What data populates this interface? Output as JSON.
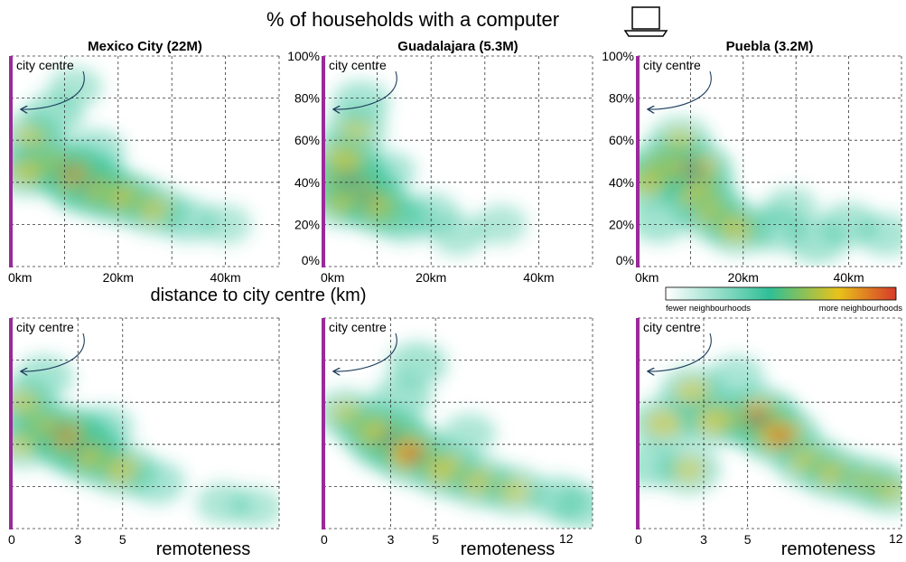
{
  "figure": {
    "title": "% of households with a computer",
    "title_icon": "laptop-icon",
    "x_label_top": "distance to city centre (km)",
    "x_label_bottom": "remoteness",
    "annotation": "city centre",
    "colorbar": {
      "low_label": "fewer neighbourhoods",
      "high_label": "more neighbourhoods",
      "colors": [
        "#ffffff",
        "#2fbf96",
        "#e8c21a",
        "#d63a2a"
      ]
    },
    "accent_color": "#9a2a9a"
  },
  "chart_data": [
    {
      "type": "heatmap",
      "title": "Mexico City (22M)",
      "row": "distance",
      "xlim": [
        0,
        50
      ],
      "ylim": [
        0,
        100
      ],
      "x_ticks": [
        "0km",
        "20km",
        "40km"
      ],
      "y_ticks": [],
      "blobs": [
        {
          "x": 14,
          "y": 40,
          "w": 1.0
        },
        {
          "x": 11,
          "y": 45,
          "w": 0.8
        },
        {
          "x": 18,
          "y": 35,
          "w": 0.7
        },
        {
          "x": 6,
          "y": 50,
          "w": 0.6
        },
        {
          "x": 22,
          "y": 32,
          "w": 0.6
        },
        {
          "x": 27,
          "y": 27,
          "w": 0.5
        },
        {
          "x": 4,
          "y": 62,
          "w": 0.45
        },
        {
          "x": 8,
          "y": 72,
          "w": 0.35
        },
        {
          "x": 33,
          "y": 22,
          "w": 0.3
        },
        {
          "x": 3,
          "y": 45,
          "w": 0.5
        },
        {
          "x": 16,
          "y": 55,
          "w": 0.3
        },
        {
          "x": 12,
          "y": 85,
          "w": 0.2
        },
        {
          "x": 40,
          "y": 20,
          "w": 0.15
        }
      ]
    },
    {
      "type": "heatmap",
      "title": "Guadalajara (5.3M)",
      "row": "distance",
      "xlim": [
        0,
        50
      ],
      "ylim": [
        0,
        100
      ],
      "x_ticks": [
        "0km",
        "20km",
        "40km"
      ],
      "y_ticks": [
        "0%",
        "20%",
        "40%",
        "60%",
        "80%",
        "100%"
      ],
      "blobs": [
        {
          "x": 5,
          "y": 40,
          "w": 1.0
        },
        {
          "x": 8,
          "y": 32,
          "w": 0.8
        },
        {
          "x": 4,
          "y": 52,
          "w": 0.6
        },
        {
          "x": 11,
          "y": 27,
          "w": 0.55
        },
        {
          "x": 6,
          "y": 65,
          "w": 0.4
        },
        {
          "x": 7,
          "y": 78,
          "w": 0.3
        },
        {
          "x": 15,
          "y": 22,
          "w": 0.35
        },
        {
          "x": 20,
          "y": 25,
          "w": 0.25
        },
        {
          "x": 3,
          "y": 30,
          "w": 0.4
        },
        {
          "x": 25,
          "y": 15,
          "w": 0.2
        },
        {
          "x": 33,
          "y": 20,
          "w": 0.15
        },
        {
          "x": 12,
          "y": 45,
          "w": 0.25
        }
      ]
    },
    {
      "type": "heatmap",
      "title": "Puebla (3.2M)",
      "row": "distance",
      "xlim": [
        0,
        50
      ],
      "ylim": [
        0,
        100
      ],
      "x_ticks": [
        "0km",
        "20km",
        "40km"
      ],
      "y_ticks": [
        "0%",
        "20%",
        "40%",
        "60%",
        "80%",
        "100%"
      ],
      "blobs": [
        {
          "x": 10,
          "y": 45,
          "w": 1.0
        },
        {
          "x": 5,
          "y": 47,
          "w": 0.75
        },
        {
          "x": 12,
          "y": 33,
          "w": 0.7
        },
        {
          "x": 15,
          "y": 24,
          "w": 0.6
        },
        {
          "x": 19,
          "y": 18,
          "w": 0.55
        },
        {
          "x": 2,
          "y": 40,
          "w": 0.5
        },
        {
          "x": 8,
          "y": 60,
          "w": 0.4
        },
        {
          "x": 4,
          "y": 22,
          "w": 0.35
        },
        {
          "x": 26,
          "y": 18,
          "w": 0.35
        },
        {
          "x": 34,
          "y": 12,
          "w": 0.35
        },
        {
          "x": 40,
          "y": 20,
          "w": 0.3
        },
        {
          "x": 47,
          "y": 15,
          "w": 0.25
        },
        {
          "x": 29,
          "y": 28,
          "w": 0.2
        }
      ]
    },
    {
      "type": "heatmap",
      "row": "remoteness",
      "xlim": [
        0,
        12
      ],
      "ylim": [
        0,
        100
      ],
      "x_ticks": [
        "0",
        "3",
        "5"
      ],
      "y_ticks": [],
      "blobs": [
        {
          "x": 3.0,
          "y": 40,
          "w": 1.0
        },
        {
          "x": 2.3,
          "y": 45,
          "w": 0.8
        },
        {
          "x": 3.8,
          "y": 33,
          "w": 0.6
        },
        {
          "x": 1.2,
          "y": 50,
          "w": 0.55
        },
        {
          "x": 5.0,
          "y": 28,
          "w": 0.55
        },
        {
          "x": 0.6,
          "y": 60,
          "w": 0.45
        },
        {
          "x": 1.5,
          "y": 72,
          "w": 0.3
        },
        {
          "x": 6.5,
          "y": 22,
          "w": 0.3
        },
        {
          "x": 4.2,
          "y": 48,
          "w": 0.3
        },
        {
          "x": 9.5,
          "y": 12,
          "w": 0.2
        },
        {
          "x": 11,
          "y": 10,
          "w": 0.15
        },
        {
          "x": 0.5,
          "y": 40,
          "w": 0.4
        }
      ]
    },
    {
      "type": "heatmap",
      "row": "remoteness",
      "xlim": [
        0,
        12
      ],
      "ylim": [
        0,
        100
      ],
      "x_ticks": [
        "0",
        "3",
        "5"
      ],
      "y_ticks": [],
      "blobs": [
        {
          "x": 3.0,
          "y": 42,
          "w": 1.0
        },
        {
          "x": 4.0,
          "y": 35,
          "w": 0.85
        },
        {
          "x": 5.5,
          "y": 28,
          "w": 0.7
        },
        {
          "x": 2.0,
          "y": 48,
          "w": 0.6
        },
        {
          "x": 7.0,
          "y": 22,
          "w": 0.55
        },
        {
          "x": 8.5,
          "y": 18,
          "w": 0.45
        },
        {
          "x": 4.2,
          "y": 78,
          "w": 0.35
        },
        {
          "x": 1.0,
          "y": 55,
          "w": 0.4
        },
        {
          "x": 10.5,
          "y": 14,
          "w": 0.35
        },
        {
          "x": 11.5,
          "y": 10,
          "w": 0.3
        },
        {
          "x": 3.5,
          "y": 62,
          "w": 0.35
        },
        {
          "x": 6.5,
          "y": 45,
          "w": 0.2
        }
      ]
    },
    {
      "type": "heatmap",
      "row": "remoteness",
      "xlim": [
        0,
        12
      ],
      "ylim": [
        0,
        100
      ],
      "x_ticks": [
        "0",
        "3",
        "5"
      ],
      "y_ticks": [],
      "blobs": [
        {
          "x": 5.5,
          "y": 52,
          "w": 1.0
        },
        {
          "x": 6.5,
          "y": 44,
          "w": 0.8
        },
        {
          "x": 3.5,
          "y": 52,
          "w": 0.65
        },
        {
          "x": 2.5,
          "y": 65,
          "w": 0.5
        },
        {
          "x": 1.2,
          "y": 50,
          "w": 0.55
        },
        {
          "x": 7.8,
          "y": 32,
          "w": 0.6
        },
        {
          "x": 9.0,
          "y": 26,
          "w": 0.55
        },
        {
          "x": 10.5,
          "y": 22,
          "w": 0.5
        },
        {
          "x": 11.5,
          "y": 18,
          "w": 0.4
        },
        {
          "x": 2.3,
          "y": 28,
          "w": 0.45
        },
        {
          "x": 4.5,
          "y": 72,
          "w": 0.25
        },
        {
          "x": 0.5,
          "y": 30,
          "w": 0.3
        }
      ]
    }
  ]
}
